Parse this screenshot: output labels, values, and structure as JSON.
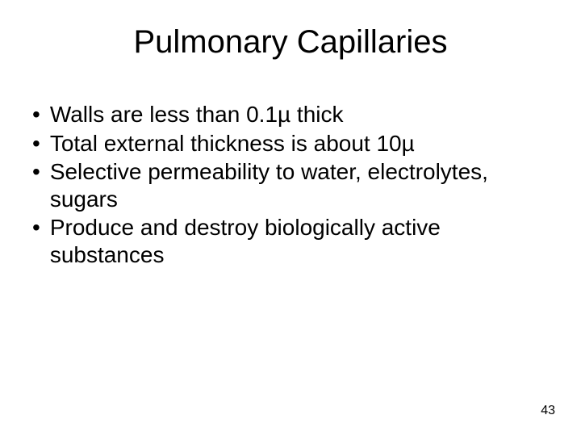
{
  "slide": {
    "title": "Pulmonary Capillaries",
    "bullets": [
      "Walls are less than 0.1µ thick",
      "Total external thickness is about 10µ",
      "Selective permeability to water, electrolytes, sugars",
      "Produce and destroy biologically active substances"
    ],
    "page_number": "43",
    "background_color": "#ffffff",
    "text_color": "#000000",
    "title_fontsize": 40,
    "body_fontsize": 28,
    "page_number_fontsize": 16
  }
}
